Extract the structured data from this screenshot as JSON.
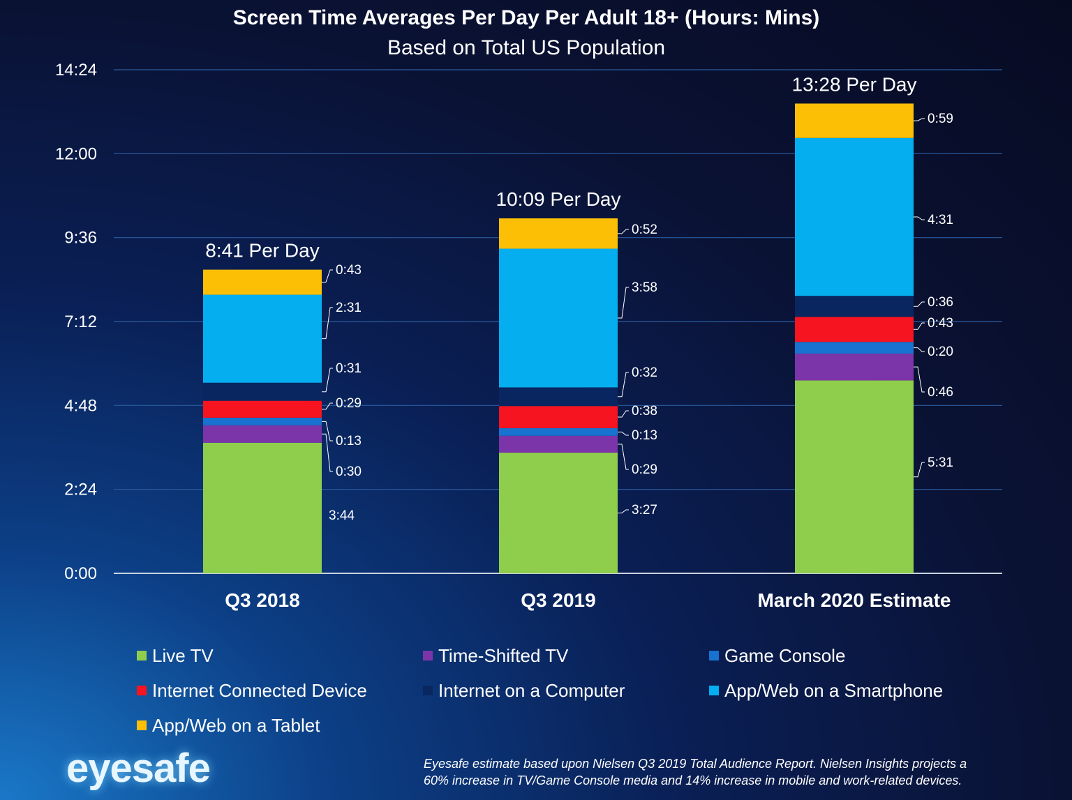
{
  "chart_data": {
    "type": "bar",
    "stacked": true,
    "title": "Screen Time Averages Per Day Per Adult 18+ (Hours: Mins)",
    "subtitle": "Based on Total US Population",
    "categories": [
      "Q3 2018",
      "Q3 2019",
      "March 2020 Estimate"
    ],
    "totals": [
      "8:41 Per Day",
      "10:09 Per Day",
      "13:28 Per Day"
    ],
    "y_ticks": [
      "0:00",
      "2:24",
      "4:48",
      "7:12",
      "9:36",
      "12:00",
      "14:24"
    ],
    "ylim_minutes": [
      0,
      864
    ],
    "grid": true,
    "series": [
      {
        "name": "Live TV",
        "color": "#8fce4d",
        "values": [
          224,
          207,
          331
        ],
        "labels": [
          "3:44",
          "3:27",
          "5:31"
        ]
      },
      {
        "name": "Time-Shifted TV",
        "color": "#7b35a8",
        "values": [
          30,
          29,
          46
        ],
        "labels": [
          "0:30",
          "0:29",
          "0:46"
        ]
      },
      {
        "name": "Game Console",
        "color": "#1872d0",
        "values": [
          13,
          13,
          20
        ],
        "labels": [
          "0:13",
          "0:13",
          "0:20"
        ]
      },
      {
        "name": "Internet Connected Device",
        "color": "#f51420",
        "values": [
          29,
          38,
          43
        ],
        "labels": [
          "0:29",
          "0:38",
          "0:43"
        ]
      },
      {
        "name": "Internet on a Computer",
        "color": "#0a2660",
        "values": [
          31,
          32,
          36
        ],
        "labels": [
          "0:31",
          "0:32",
          "0:36"
        ]
      },
      {
        "name": "App/Web on a Smartphone",
        "color": "#05aeee",
        "values": [
          151,
          238,
          271
        ],
        "labels": [
          "2:31",
          "3:58",
          "4:31"
        ]
      },
      {
        "name": "App/Web on a Tablet",
        "color": "#fcbf06",
        "values": [
          43,
          52,
          59
        ],
        "labels": [
          "0:43",
          "0:52",
          "0:59"
        ]
      }
    ]
  },
  "logo": "eyesafe",
  "footnote": {
    "line1": "Eyesafe estimate based upon Nielsen Q3 2019 Total Audience Report. Nielsen Insights projects a",
    "line2": "60% increase in TV/Game Console media and 14% increase in mobile and work-related devices."
  }
}
